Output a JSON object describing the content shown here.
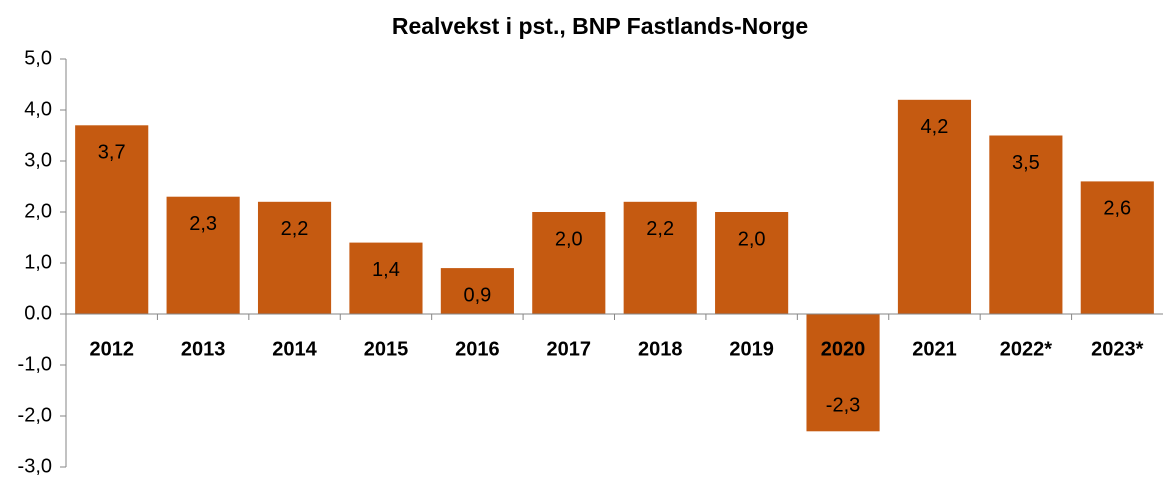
{
  "chart_data": {
    "type": "bar",
    "title": "Realvekst i pst., BNP Fastlands-Norge",
    "categories": [
      "2012",
      "2013",
      "2014",
      "2015",
      "2016",
      "2017",
      "2018",
      "2019",
      "2020",
      "2021",
      "2022*",
      "2023*"
    ],
    "values": [
      3.7,
      2.3,
      2.2,
      1.4,
      0.9,
      2.0,
      2.2,
      2.0,
      -2.3,
      4.2,
      3.5,
      2.6
    ],
    "value_labels": [
      "3,7",
      "2,3",
      "2,2",
      "1,4",
      "0,9",
      "2,0",
      "2,2",
      "2,0",
      "-2,3",
      "4,2",
      "3,5",
      "2,6"
    ],
    "color": "#c55a11",
    "ylim": [
      -3,
      5
    ],
    "yticks": [
      {
        "value": -3,
        "label": "-3,0"
      },
      {
        "value": -2,
        "label": "-2,0"
      },
      {
        "value": -1,
        "label": "-1,0"
      },
      {
        "value": 0,
        "label": "0.0"
      },
      {
        "value": 1,
        "label": "1,0"
      },
      {
        "value": 2,
        "label": "2,0"
      },
      {
        "value": 3,
        "label": "3,0"
      },
      {
        "value": 4,
        "label": "4,0"
      },
      {
        "value": 5,
        "label": "5,0"
      }
    ]
  }
}
